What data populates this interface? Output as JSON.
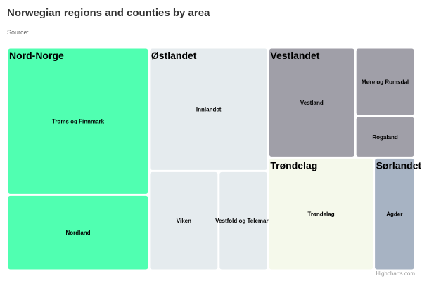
{
  "title": "Norwegian regions and counties by area",
  "subtitle": "Source:",
  "credits": "Highcharts.com",
  "chart_data": {
    "type": "treemap",
    "title": "Norwegian regions and counties by area",
    "subtitle": "Source:",
    "regions": [
      {
        "name": "Nord-Norge",
        "color": "#50FFB1",
        "counties": [
          {
            "name": "Troms og Finnmark",
            "value": 74000
          },
          {
            "name": "Nordland",
            "value": 38000
          }
        ]
      },
      {
        "name": "Østlandet",
        "color": "#E5EBEE",
        "counties": [
          {
            "name": "Innlandet",
            "value": 52000
          },
          {
            "name": "Viken",
            "value": 24500
          },
          {
            "name": "Vestfold og Telemark",
            "value": 17500
          }
        ]
      },
      {
        "name": "Vestlandet",
        "color": "#A09FA8",
        "counties": [
          {
            "name": "Vestland",
            "value": 33900
          },
          {
            "name": "Møre og Romsdal",
            "value": 14400
          },
          {
            "name": "Rogaland",
            "value": 8800
          }
        ]
      },
      {
        "name": "Trøndelag",
        "color": "#F5F9EB",
        "counties": [
          {
            "name": "Trøndelag",
            "value": 42200
          }
        ]
      },
      {
        "name": "Sørlandet",
        "color": "#A7B3C3",
        "counties": [
          {
            "name": "Agder",
            "value": 16400
          }
        ]
      }
    ]
  }
}
